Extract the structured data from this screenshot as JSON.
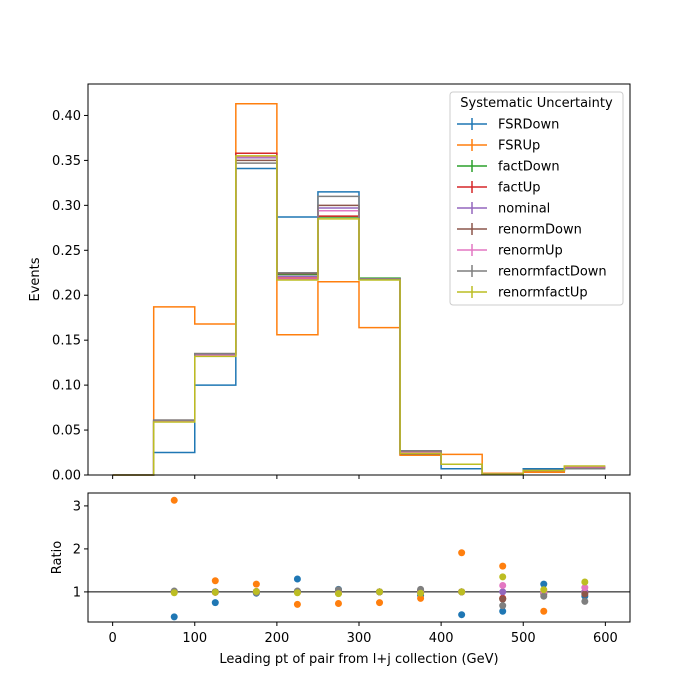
{
  "chart_data": [
    {
      "type": "line",
      "drawstyle": "steps",
      "xlabel": "",
      "ylabel": "Events",
      "xlim": [
        -30,
        630
      ],
      "ylim": [
        0,
        0.435
      ],
      "xticks": [
        0,
        100,
        200,
        300,
        400,
        500,
        600
      ],
      "yticks": [
        0.0,
        0.05,
        0.1,
        0.15,
        0.2,
        0.25,
        0.3,
        0.35,
        0.4
      ],
      "ytick_labels": [
        "0.00",
        "0.05",
        "0.10",
        "0.15",
        "0.20",
        "0.25",
        "0.30",
        "0.35",
        "0.40"
      ],
      "bin_edges": [
        0,
        50,
        100,
        150,
        200,
        250,
        300,
        350,
        400,
        450,
        500,
        550,
        600
      ],
      "legend": {
        "title": "Systematic Uncertainty",
        "loc": "upper right"
      },
      "series": [
        {
          "name": "FSRDown",
          "color": "#1f77b4",
          "values": [
            0.0,
            0.025,
            0.1,
            0.341,
            0.287,
            0.315,
            0.218,
            0.023,
            0.007,
            0.001,
            0.007,
            0.009
          ]
        },
        {
          "name": "FSRUp",
          "color": "#ff7f0e",
          "values": [
            0.0,
            0.187,
            0.168,
            0.413,
            0.156,
            0.215,
            0.164,
            0.022,
            0.023,
            0.002,
            0.003,
            0.008
          ]
        },
        {
          "name": "factDown",
          "color": "#2ca02c",
          "values": [
            0.0,
            0.06,
            0.134,
            0.354,
            0.223,
            0.287,
            0.219,
            0.025,
            0.012,
            0.001,
            0.005,
            0.008
          ]
        },
        {
          "name": "factUp",
          "color": "#d62728",
          "values": [
            0.0,
            0.06,
            0.133,
            0.358,
            0.219,
            0.288,
            0.218,
            0.024,
            0.012,
            0.001,
            0.005,
            0.008
          ]
        },
        {
          "name": "nominal",
          "color": "#9467bd",
          "values": [
            0.0,
            0.06,
            0.134,
            0.353,
            0.221,
            0.297,
            0.218,
            0.025,
            0.012,
            0.001,
            0.005,
            0.008
          ]
        },
        {
          "name": "renormDown",
          "color": "#8c564b",
          "values": [
            0.0,
            0.061,
            0.135,
            0.35,
            0.224,
            0.3,
            0.218,
            0.026,
            0.012,
            0.001,
            0.005,
            0.008
          ]
        },
        {
          "name": "renormUp",
          "color": "#e377c2",
          "values": [
            0.0,
            0.06,
            0.133,
            0.354,
            0.218,
            0.294,
            0.218,
            0.025,
            0.012,
            0.001,
            0.005,
            0.009
          ]
        },
        {
          "name": "renormfactDown",
          "color": "#7f7f7f",
          "values": [
            0.0,
            0.061,
            0.135,
            0.347,
            0.225,
            0.31,
            0.218,
            0.027,
            0.012,
            0.001,
            0.005,
            0.007
          ]
        },
        {
          "name": "renormfactUp",
          "color": "#bcbd22",
          "values": [
            0.0,
            0.059,
            0.132,
            0.355,
            0.217,
            0.285,
            0.217,
            0.024,
            0.012,
            0.001,
            0.005,
            0.01
          ]
        }
      ]
    },
    {
      "type": "scatter",
      "xlabel": "Leading pt of pair from l+j collection (GeV)",
      "ylabel": "Ratio",
      "xlim": [
        -30,
        630
      ],
      "ylim": [
        0.3,
        3.3
      ],
      "xticks": [
        0,
        100,
        200,
        300,
        400,
        500,
        600
      ],
      "yticks": [
        1,
        2,
        3
      ],
      "ytick_labels": [
        "1",
        "2",
        "3"
      ],
      "reference_line": 1,
      "x": [
        75,
        125,
        175,
        225,
        275,
        325,
        375,
        425,
        475,
        525,
        575
      ],
      "series": [
        {
          "name": "FSRDown",
          "color": "#1f77b4",
          "values": [
            0.42,
            0.75,
            0.97,
            1.3,
            1.06,
            1.0,
            0.92,
            0.47,
            0.55,
            1.18,
            0.9
          ]
        },
        {
          "name": "FSRUp",
          "color": "#ff7f0e",
          "values": [
            3.13,
            1.26,
            1.18,
            0.71,
            0.73,
            0.75,
            0.85,
            1.91,
            1.6,
            0.55,
            1.0
          ]
        },
        {
          "name": "factDown",
          "color": "#2ca02c",
          "values": [
            1.0,
            1.0,
            1.0,
            1.01,
            0.97,
            1.0,
            1.0,
            1.0,
            0.85,
            1.0,
            1.0
          ]
        },
        {
          "name": "factUp",
          "color": "#d62728",
          "values": [
            1.0,
            0.99,
            1.01,
            0.99,
            0.97,
            1.0,
            0.98,
            1.0,
            0.85,
            1.0,
            1.0
          ]
        },
        {
          "name": "nominal",
          "color": "#9467bd",
          "values": [
            1.0,
            1.0,
            1.0,
            1.0,
            1.0,
            1.0,
            1.0,
            1.0,
            1.0,
            1.0,
            1.0
          ]
        },
        {
          "name": "renormDown",
          "color": "#8c564b",
          "values": [
            1.01,
            1.0,
            0.99,
            1.01,
            1.01,
            1.0,
            1.03,
            1.0,
            0.83,
            0.95,
            0.95
          ]
        },
        {
          "name": "renormUp",
          "color": "#e377c2",
          "values": [
            1.0,
            0.99,
            1.0,
            0.99,
            0.99,
            1.0,
            1.0,
            1.0,
            1.15,
            1.0,
            1.1
          ]
        },
        {
          "name": "renormfactDown",
          "color": "#7f7f7f",
          "values": [
            1.02,
            1.0,
            0.98,
            1.02,
            1.05,
            1.0,
            1.06,
            1.0,
            0.68,
            0.9,
            0.78
          ]
        },
        {
          "name": "renormfactUp",
          "color": "#bcbd22",
          "values": [
            0.98,
            0.99,
            1.01,
            0.98,
            0.96,
            1.0,
            0.97,
            1.0,
            1.35,
            1.05,
            1.23
          ]
        }
      ]
    }
  ]
}
